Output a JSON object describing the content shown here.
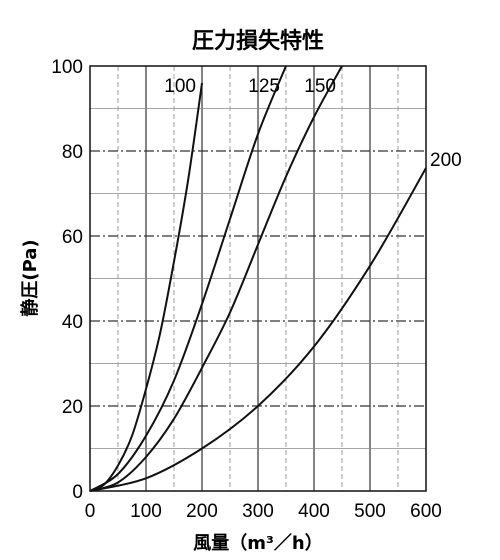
{
  "chart_data": {
    "type": "line",
    "title": "圧力損失特性",
    "xlabel": "風量（m³／h）",
    "ylabel": "静圧(Pa)",
    "xlim": [
      0,
      600
    ],
    "ylim": [
      0,
      100
    ],
    "x_ticks": [
      "0",
      "100",
      "200",
      "300",
      "400",
      "500",
      "600"
    ],
    "y_ticks": [
      "0",
      "20",
      "40",
      "60",
      "80",
      "100"
    ],
    "grid": true,
    "series": [
      {
        "name": "100",
        "x": [
          0,
          25,
          50,
          75,
          100,
          125,
          150,
          175,
          200
        ],
        "y": [
          0,
          1.5,
          6,
          13,
          24,
          37,
          54,
          73,
          96
        ]
      },
      {
        "name": "125",
        "x": [
          0,
          50,
          100,
          150,
          200,
          250,
          300,
          350
        ],
        "y": [
          0,
          4,
          13,
          26,
          44,
          64,
          84,
          100
        ]
      },
      {
        "name": "150",
        "x": [
          0,
          50,
          100,
          150,
          200,
          250,
          300,
          350,
          400,
          450
        ],
        "y": [
          0,
          2,
          8,
          17,
          29,
          42,
          58,
          74,
          88,
          100
        ]
      },
      {
        "name": "200",
        "x": [
          0,
          100,
          200,
          300,
          400,
          500,
          600
        ],
        "y": [
          0,
          3,
          10,
          20,
          34,
          53,
          76
        ]
      }
    ]
  }
}
